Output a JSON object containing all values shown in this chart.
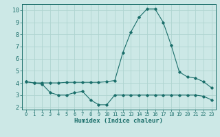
{
  "xlabel": "Humidex (Indice chaleur)",
  "bg_color": "#cce8e6",
  "grid_color": "#afd4d0",
  "line_color": "#1a6e6a",
  "xlim": [
    -0.5,
    23.5
  ],
  "ylim": [
    1.8,
    10.5
  ],
  "xticks": [
    0,
    1,
    2,
    3,
    4,
    5,
    6,
    7,
    8,
    9,
    10,
    11,
    12,
    13,
    14,
    15,
    16,
    17,
    18,
    19,
    20,
    21,
    22,
    23
  ],
  "yticks": [
    2,
    3,
    4,
    5,
    6,
    7,
    8,
    9,
    10
  ],
  "line1_x": [
    0,
    1,
    2,
    3,
    4,
    5,
    6,
    7,
    8,
    9,
    10,
    11,
    12,
    13,
    14,
    15,
    16,
    17,
    18,
    19,
    20,
    21,
    22,
    23
  ],
  "line1_y": [
    4.1,
    4.0,
    4.0,
    4.0,
    4.0,
    4.05,
    4.05,
    4.05,
    4.05,
    4.05,
    4.1,
    4.2,
    6.5,
    8.2,
    9.4,
    10.1,
    10.1,
    9.0,
    7.1,
    4.9,
    4.5,
    4.4,
    4.1,
    3.6
  ],
  "line2_x": [
    0,
    1,
    2,
    3,
    4,
    5,
    6,
    7,
    8,
    9,
    10,
    11,
    12,
    13,
    14,
    15,
    16,
    17,
    18,
    19,
    20,
    21,
    22,
    23
  ],
  "line2_y": [
    4.1,
    4.0,
    3.9,
    3.2,
    3.0,
    3.0,
    3.2,
    3.3,
    2.6,
    2.2,
    2.2,
    3.0,
    3.0,
    3.0,
    3.0,
    3.0,
    3.0,
    3.0,
    3.0,
    3.0,
    3.0,
    3.0,
    2.9,
    2.6
  ]
}
